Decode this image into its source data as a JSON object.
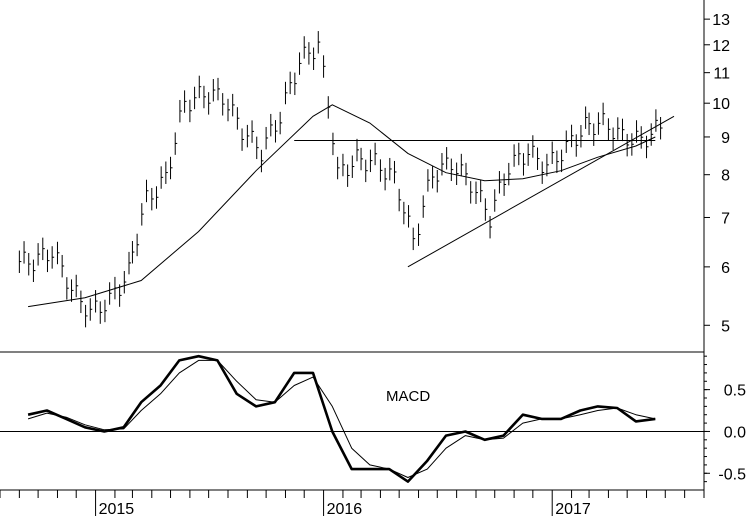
{
  "chart_data": [
    {
      "type": "line",
      "panel": "price",
      "title": "",
      "xlabel": "",
      "ylabel": "",
      "y_scale": "log",
      "ylim": [
        4.6,
        13.8
      ],
      "y_ticks": [
        5,
        6,
        7,
        8,
        9,
        10,
        11,
        12,
        13
      ],
      "x_tick_labels": [
        "2015",
        "2016",
        "2017"
      ],
      "grid": false,
      "series": [
        {
          "style": "bars",
          "x": [
            "2014-09",
            "2014-10",
            "2014-11",
            "2014-12",
            "2015-01",
            "2015-02",
            "2015-03",
            "2015-04",
            "2015-05",
            "2015-06",
            "2015-07",
            "2015-08",
            "2015-09",
            "2015-10",
            "2015-11",
            "2015-12",
            "2016-01",
            "2016-02",
            "2016-03",
            "2016-04",
            "2016-05",
            "2016-06",
            "2016-07",
            "2016-08",
            "2016-09",
            "2016-10",
            "2016-11",
            "2016-12",
            "2017-01",
            "2017-02",
            "2017-03",
            "2017-04",
            "2017-05",
            "2017-06"
          ],
          "values": [
            6.1,
            6.3,
            5.6,
            5.2,
            5.4,
            5.9,
            7.4,
            7.9,
            10.0,
            10.3,
            10.2,
            9.2,
            8.6,
            9.6,
            11.4,
            12.0,
            8.0,
            8.4,
            8.3,
            7.9,
            6.5,
            8.0,
            8.3,
            7.8,
            7.0,
            8.2,
            8.6,
            8.2,
            8.7,
            9.3,
            9.4,
            9.0,
            8.9,
            9.3
          ]
        },
        {
          "style": "line",
          "x": [
            "2014-09",
            "2014-12",
            "2015-03",
            "2015-06",
            "2015-09",
            "2015-12",
            "2016-01",
            "2016-03",
            "2016-05",
            "2016-07",
            "2016-09",
            "2016-11",
            "2017-01",
            "2017-03",
            "2017-05",
            "2017-06"
          ],
          "values": [
            5.3,
            5.45,
            5.75,
            6.7,
            8.1,
            9.6,
            9.95,
            9.4,
            8.55,
            8.05,
            7.85,
            7.9,
            8.1,
            8.45,
            8.75,
            9.0
          ]
        }
      ],
      "annotations": [
        {
          "type": "horizontal_line",
          "y": 8.9,
          "from": "2015-11",
          "to": "2017-06"
        },
        {
          "type": "trendline",
          "x": [
            "2016-05",
            "2017-07"
          ],
          "y": [
            6.0,
            9.6
          ]
        }
      ]
    },
    {
      "type": "line",
      "panel": "macd",
      "title": "MACD",
      "xlabel": "",
      "ylabel": "",
      "ylim": [
        -0.7,
        0.95
      ],
      "y_ticks": [
        -0.5,
        0.0,
        0.5
      ],
      "y_tick_labels": [
        "-0.5",
        "0.0",
        "0.5"
      ],
      "grid": false,
      "series": [
        {
          "style": "thick",
          "x": [
            "2014-09",
            "2014-10",
            "2014-11",
            "2014-12",
            "2015-01",
            "2015-02",
            "2015-03",
            "2015-04",
            "2015-05",
            "2015-06",
            "2015-07",
            "2015-08",
            "2015-09",
            "2015-10",
            "2015-11",
            "2015-12",
            "2016-01",
            "2016-02",
            "2016-03",
            "2016-04",
            "2016-05",
            "2016-06",
            "2016-07",
            "2016-08",
            "2016-09",
            "2016-10",
            "2016-11",
            "2016-12",
            "2017-01",
            "2017-02",
            "2017-03",
            "2017-04",
            "2017-05",
            "2017-06"
          ],
          "values": [
            0.2,
            0.25,
            0.15,
            0.05,
            0.0,
            0.05,
            0.35,
            0.55,
            0.85,
            0.9,
            0.85,
            0.45,
            0.3,
            0.35,
            0.7,
            0.7,
            0.0,
            -0.45,
            -0.45,
            -0.45,
            -0.6,
            -0.35,
            -0.05,
            0.0,
            -0.1,
            -0.05,
            0.2,
            0.15,
            0.15,
            0.25,
            0.3,
            0.28,
            0.12,
            0.15
          ]
        },
        {
          "style": "thin",
          "x": [
            "2014-09",
            "2014-10",
            "2014-11",
            "2014-12",
            "2015-01",
            "2015-02",
            "2015-03",
            "2015-04",
            "2015-05",
            "2015-06",
            "2015-07",
            "2015-08",
            "2015-09",
            "2015-10",
            "2015-11",
            "2015-12",
            "2016-01",
            "2016-02",
            "2016-03",
            "2016-04",
            "2016-05",
            "2016-06",
            "2016-07",
            "2016-08",
            "2016-09",
            "2016-10",
            "2016-11",
            "2016-12",
            "2017-01",
            "2017-02",
            "2017-03",
            "2017-04",
            "2017-05",
            "2017-06"
          ],
          "values": [
            0.15,
            0.22,
            0.17,
            0.08,
            0.02,
            0.03,
            0.25,
            0.45,
            0.7,
            0.85,
            0.85,
            0.6,
            0.38,
            0.35,
            0.55,
            0.65,
            0.3,
            -0.2,
            -0.4,
            -0.45,
            -0.55,
            -0.45,
            -0.2,
            -0.05,
            -0.1,
            -0.08,
            0.1,
            0.15,
            0.15,
            0.2,
            0.25,
            0.28,
            0.2,
            0.15
          ]
        }
      ]
    }
  ]
}
